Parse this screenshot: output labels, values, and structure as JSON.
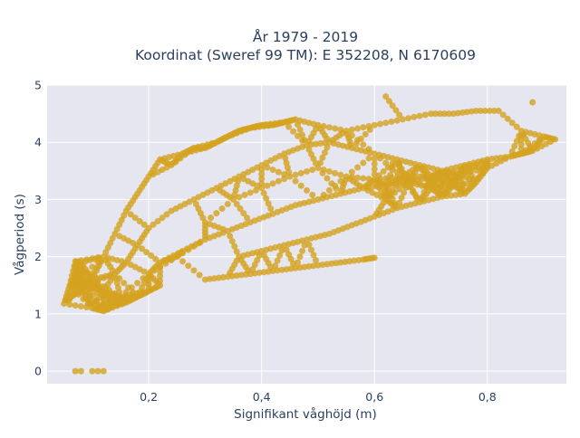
{
  "chart_data": {
    "type": "scatter",
    "title": [
      "År 1979 - 2019",
      "Koordinat (Sweref 99 TM): E 352208, N 6170609"
    ],
    "xlabel": "Signifikant våghöjd (m)",
    "ylabel": "Vågperiod (s)",
    "xlim": [
      0.02,
      0.94
    ],
    "ylim": [
      -0.22,
      5.0
    ],
    "xticks": [
      0.2,
      0.4,
      0.6,
      0.8
    ],
    "xtick_labels": [
      "0,2",
      "0,4",
      "0,6",
      "0,8"
    ],
    "yticks": [
      0,
      1,
      2,
      3,
      4,
      5
    ],
    "ytick_labels": [
      "0",
      "1",
      "2",
      "3",
      "4",
      "5"
    ],
    "grid": true,
    "legend": "none",
    "colors": {
      "marker": "#d4a21f",
      "plot_bg": "#e5e6f0",
      "grid": "#ffffff",
      "text": "#2a3f5f"
    },
    "series": [
      {
        "points": [
          [
            0.07,
            0.0
          ],
          [
            0.08,
            0.0
          ],
          [
            0.1,
            0.0
          ],
          [
            0.11,
            0.0
          ],
          [
            0.12,
            0.0
          ],
          [
            0.05,
            1.18
          ],
          [
            0.06,
            1.5
          ],
          [
            0.07,
            1.55
          ],
          [
            0.08,
            1.48
          ],
          [
            0.09,
            1.52
          ],
          [
            0.07,
            1.92
          ],
          [
            0.08,
            1.9
          ],
          [
            0.1,
            1.1
          ],
          [
            0.12,
            1.05
          ],
          [
            0.14,
            1.15
          ],
          [
            0.16,
            1.2
          ],
          [
            0.18,
            1.3
          ],
          [
            0.2,
            1.4
          ],
          [
            0.22,
            1.5
          ],
          [
            0.1,
            1.6
          ],
          [
            0.12,
            2.0
          ],
          [
            0.14,
            2.4
          ],
          [
            0.16,
            2.8
          ],
          [
            0.18,
            3.1
          ],
          [
            0.2,
            3.4
          ],
          [
            0.22,
            3.7
          ],
          [
            0.24,
            3.6
          ],
          [
            0.26,
            3.8
          ],
          [
            0.28,
            3.9
          ],
          [
            0.3,
            3.9
          ],
          [
            0.32,
            4.0
          ],
          [
            0.34,
            4.1
          ],
          [
            0.36,
            4.2
          ],
          [
            0.38,
            4.25
          ],
          [
            0.4,
            4.3
          ],
          [
            0.42,
            4.3
          ],
          [
            0.44,
            4.35
          ],
          [
            0.46,
            4.4
          ],
          [
            0.5,
            4.3
          ],
          [
            0.55,
            4.2
          ],
          [
            0.6,
            4.3
          ],
          [
            0.62,
            4.8
          ],
          [
            0.65,
            4.4
          ],
          [
            0.7,
            4.5
          ],
          [
            0.74,
            4.5
          ],
          [
            0.78,
            4.55
          ],
          [
            0.82,
            4.55
          ],
          [
            0.86,
            4.2
          ],
          [
            0.88,
            4.7
          ],
          [
            0.9,
            4.1
          ],
          [
            0.92,
            4.05
          ],
          [
            0.88,
            3.85
          ],
          [
            0.86,
            3.8
          ],
          [
            0.8,
            3.7
          ],
          [
            0.76,
            3.6
          ],
          [
            0.72,
            3.5
          ],
          [
            0.7,
            3.4
          ],
          [
            0.66,
            3.3
          ],
          [
            0.62,
            3.25
          ],
          [
            0.58,
            3.2
          ],
          [
            0.54,
            3.1
          ],
          [
            0.5,
            3.0
          ],
          [
            0.46,
            2.9
          ],
          [
            0.42,
            2.75
          ],
          [
            0.38,
            2.6
          ],
          [
            0.34,
            2.45
          ],
          [
            0.3,
            2.3
          ],
          [
            0.26,
            2.1
          ],
          [
            0.22,
            1.9
          ],
          [
            0.3,
            1.6
          ],
          [
            0.34,
            1.65
          ],
          [
            0.38,
            1.7
          ],
          [
            0.42,
            1.75
          ],
          [
            0.46,
            1.8
          ],
          [
            0.5,
            1.85
          ],
          [
            0.54,
            1.9
          ],
          [
            0.58,
            1.95
          ],
          [
            0.6,
            1.98
          ],
          [
            0.36,
            2.0
          ],
          [
            0.4,
            2.1
          ],
          [
            0.44,
            2.2
          ],
          [
            0.48,
            2.3
          ],
          [
            0.52,
            2.4
          ],
          [
            0.56,
            2.55
          ],
          [
            0.6,
            2.7
          ],
          [
            0.64,
            2.85
          ],
          [
            0.68,
            2.95
          ],
          [
            0.72,
            3.05
          ],
          [
            0.76,
            3.1
          ],
          [
            0.74,
            3.25
          ],
          [
            0.78,
            3.3
          ],
          [
            0.68,
            3.6
          ],
          [
            0.64,
            3.7
          ],
          [
            0.6,
            3.8
          ],
          [
            0.56,
            3.9
          ],
          [
            0.52,
            4.0
          ],
          [
            0.48,
            3.95
          ],
          [
            0.44,
            3.8
          ],
          [
            0.4,
            3.6
          ],
          [
            0.36,
            3.4
          ],
          [
            0.32,
            3.2
          ],
          [
            0.28,
            3.0
          ],
          [
            0.24,
            2.8
          ],
          [
            0.2,
            2.5
          ],
          [
            0.18,
            2.2
          ],
          [
            0.16,
            1.9
          ],
          [
            0.14,
            1.7
          ],
          [
            0.12,
            1.4
          ],
          [
            0.15,
            1.3
          ],
          [
            0.2,
            1.7
          ],
          [
            0.25,
            2.0
          ],
          [
            0.3,
            2.6
          ],
          [
            0.35,
            3.0
          ],
          [
            0.4,
            3.2
          ],
          [
            0.45,
            3.4
          ],
          [
            0.5,
            3.55
          ],
          [
            0.55,
            3.4
          ],
          [
            0.6,
            3.35
          ],
          [
            0.65,
            3.4
          ],
          [
            0.7,
            3.2
          ],
          [
            0.75,
            3.45
          ],
          [
            0.8,
            3.55
          ],
          [
            0.84,
            3.75
          ],
          [
            0.62,
            3.0
          ]
        ]
      }
    ]
  }
}
